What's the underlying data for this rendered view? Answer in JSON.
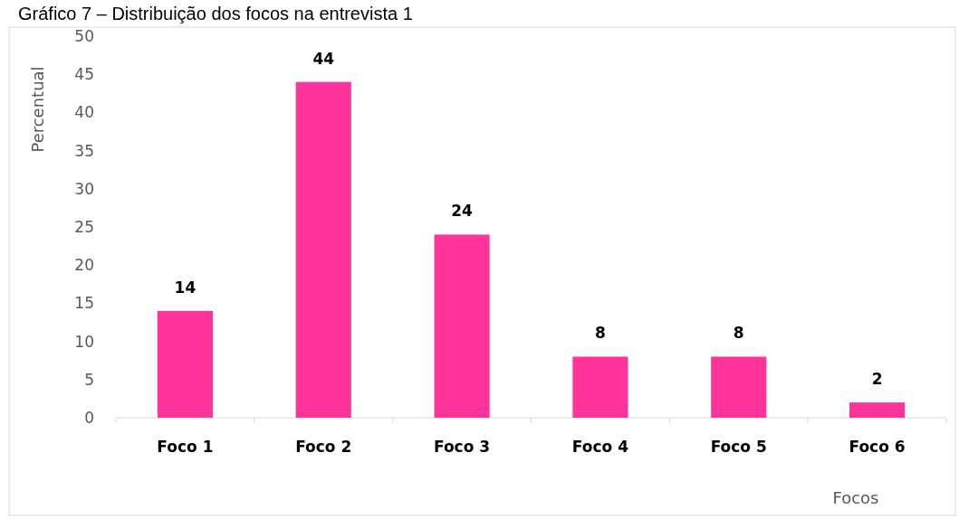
{
  "chart_data": {
    "type": "bar",
    "title": "Gráfico 7 – Distribuição dos focos na entrevista 1",
    "xlabel": "Focos",
    "ylabel": "Percentual",
    "categories": [
      "Foco 1",
      "Foco 2",
      "Foco 3",
      "Foco 4",
      "Foco 5",
      "Foco 6"
    ],
    "values": [
      14,
      44,
      24,
      8,
      8,
      2
    ],
    "color": "#ff3399",
    "ylim": [
      0,
      50
    ],
    "yticks": [
      0,
      5,
      10,
      15,
      20,
      25,
      30,
      35,
      40,
      45,
      50
    ],
    "data_labels": true
  }
}
